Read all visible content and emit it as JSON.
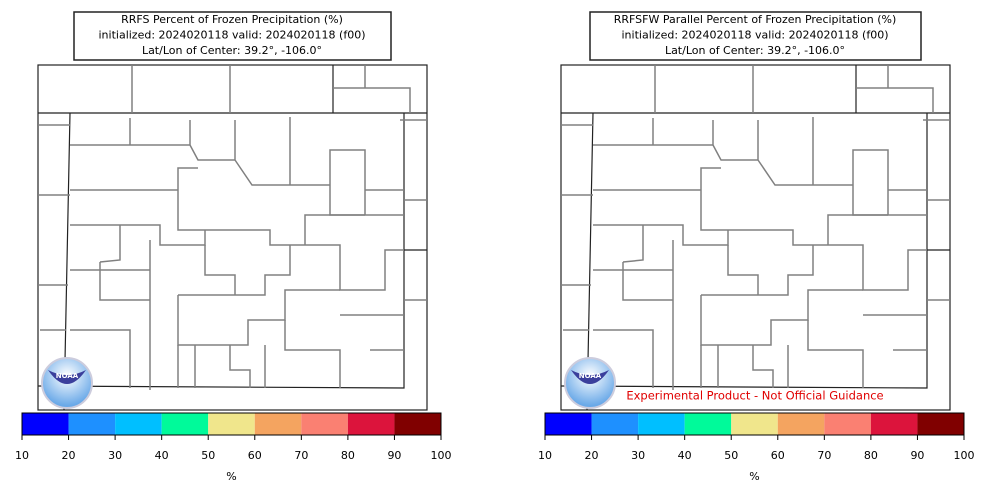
{
  "panels": [
    {
      "title_lines": [
        "RRFS Percent of Frozen Precipitation (%)",
        "initialized: 2024020118 valid: 2024020118 (f00)",
        "Lat/Lon of Center: 39.2°, -106.0°"
      ],
      "logo": "NOAA",
      "colorbar": {
        "ticks": [
          10,
          20,
          30,
          40,
          50,
          60,
          70,
          80,
          90,
          100
        ],
        "colors": [
          "#0000ff",
          "#1e90ff",
          "#00bfff",
          "#00fa9a",
          "#f0e68c",
          "#f4a460",
          "#fa8072",
          "#dc143c",
          "#800000"
        ],
        "label": "%"
      }
    },
    {
      "title_lines": [
        "RRFSFW Parallel Percent of Frozen Precipitation (%)",
        "initialized: 2024020118 valid: 2024020118 (f00)",
        "Lat/Lon of Center: 39.2°, -106.0°"
      ],
      "logo": "NOAA",
      "note": "Experimental Product - Not Official Guidance",
      "colorbar": {
        "ticks": [
          10,
          20,
          30,
          40,
          50,
          60,
          70,
          80,
          90,
          100
        ],
        "colors": [
          "#0000ff",
          "#1e90ff",
          "#00bfff",
          "#00fa9a",
          "#f0e68c",
          "#f4a460",
          "#fa8072",
          "#dc143c",
          "#800000"
        ],
        "label": "%"
      }
    }
  ]
}
